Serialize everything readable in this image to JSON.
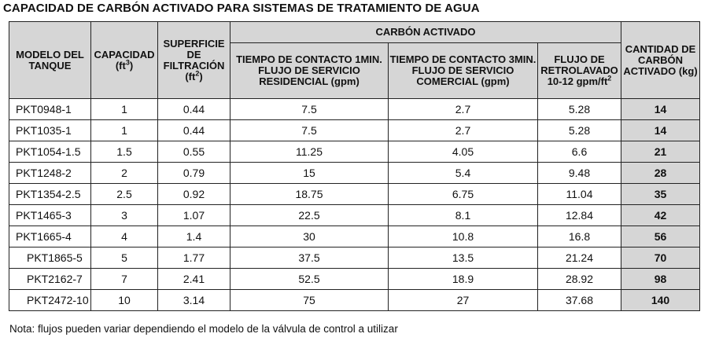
{
  "title": "CAPACIDAD DE CARBÓN ACTIVADO PARA SISTEMAS DE TRATAMIENTO DE AGUA",
  "headers": {
    "modelo": "MODELO DEL TANQUE",
    "capacidad": "CAPACIDAD",
    "capacidad_unit": "(ft",
    "capacidad_unit_exp": "3",
    "capacidad_unit_close": ")",
    "superficie": "SUPERFICIE DE FILTRACIÓN",
    "superficie_unit": "(ft",
    "superficie_unit_exp": "2",
    "superficie_unit_close": ")",
    "carbon_group": "CARBÓN ACTIVADO",
    "tiempo_1min": "TIEMPO DE CONTACTO 1MIN. FLUJO DE SERVICIO RESIDENCIAL (gpm)",
    "tiempo_3min": "TIEMPO DE CONTACTO 3MIN. FLUJO DE SERVICIO COMERCIAL (gpm)",
    "retrolavado": "FLUJO DE RETROLAVADO",
    "retrolavado_unit": "10-12 gpm/ft",
    "retrolavado_unit_exp": "2",
    "cantidad": "CANTIDAD DE CARBÓN ACTIVADO (kg)"
  },
  "rows": [
    {
      "model": "PKT0948-1",
      "cap": "1",
      "sup": "0.44",
      "res": "7.5",
      "com": "2.7",
      "back": "5.28",
      "kg": "14"
    },
    {
      "model": "PKT1035-1",
      "cap": "1",
      "sup": "0.44",
      "res": "7.5",
      "com": "2.7",
      "back": "5.28",
      "kg": "14"
    },
    {
      "model": "PKT1054-1.5",
      "cap": "1.5",
      "sup": "0.55",
      "res": "11.25",
      "com": "4.05",
      "back": "6.6",
      "kg": "21"
    },
    {
      "model": "PKT1248-2",
      "cap": "2",
      "sup": "0.79",
      "res": "15",
      "com": "5.4",
      "back": "9.48",
      "kg": "28"
    },
    {
      "model": "PKT1354-2.5",
      "cap": "2.5",
      "sup": "0.92",
      "res": "18.75",
      "com": "6.75",
      "back": "11.04",
      "kg": "35"
    },
    {
      "model": "PKT1465-3",
      "cap": "3",
      "sup": "1.07",
      "res": "22.5",
      "com": "8.1",
      "back": "12.84",
      "kg": "42"
    },
    {
      "model": "PKT1665-4",
      "cap": "4",
      "sup": "1.4",
      "res": "30",
      "com": "10.8",
      "back": "16.8",
      "kg": "56"
    },
    {
      "model": "PKT1865-5",
      "cap": "5",
      "sup": "1.77",
      "res": "37.5",
      "com": "13.5",
      "back": "21.24",
      "kg": "70"
    },
    {
      "model": "PKT2162-7",
      "cap": "7",
      "sup": "2.41",
      "res": "52.5",
      "com": "18.9",
      "back": "28.92",
      "kg": "98"
    },
    {
      "model": "PKT2472-10",
      "cap": "10",
      "sup": "3.14",
      "res": "75",
      "com": "27",
      "back": "37.68",
      "kg": "140"
    }
  ],
  "note": "Nota: flujos pueden variar dependiendo el modelo de la válvula de control a utilizar"
}
